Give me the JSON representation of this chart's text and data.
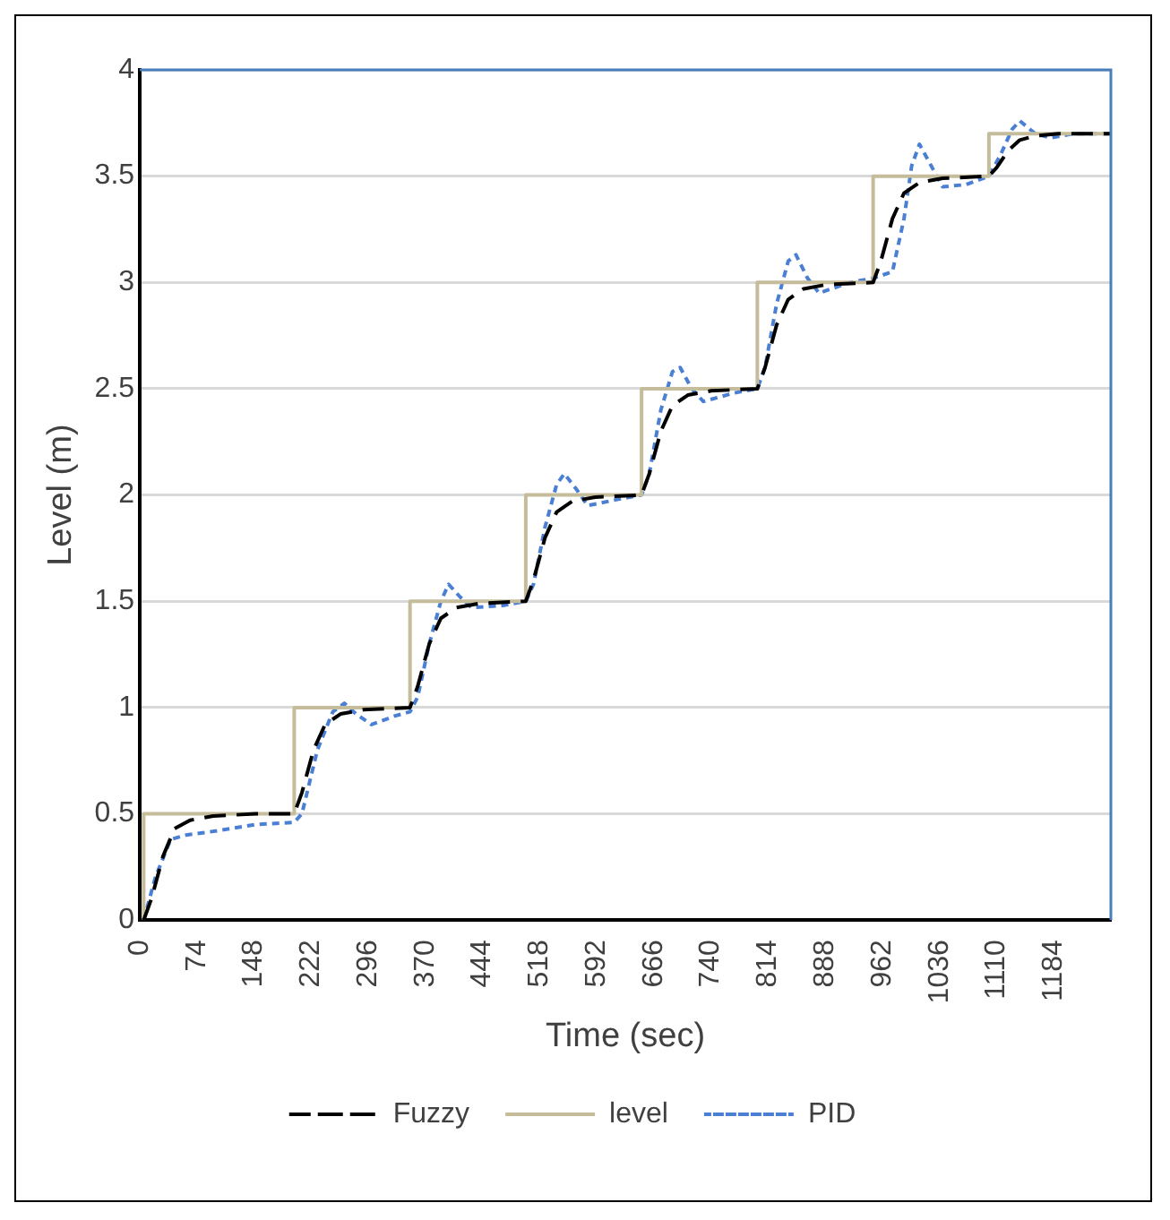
{
  "chart_data": {
    "type": "line",
    "xlabel": "Time (sec)",
    "ylabel": "Level (m)",
    "xlim": [
      0,
      1258
    ],
    "xticks": [
      0,
      74,
      148,
      222,
      296,
      370,
      444,
      518,
      592,
      666,
      740,
      814,
      888,
      962,
      1036,
      1110,
      1184
    ],
    "ylim": [
      0,
      4
    ],
    "yticks": [
      0,
      0.5,
      1,
      1.5,
      2,
      2.5,
      3,
      3.5,
      4
    ],
    "grid": "y",
    "legend": "bottom",
    "marker": "none",
    "series": [
      {
        "name": "Fuzzy",
        "color": "#000000",
        "line_style": "dashed",
        "x": [
          5,
          15,
          30,
          45,
          65,
          95,
          150,
          200,
          210,
          225,
          240,
          260,
          290,
          350,
          360,
          375,
          390,
          410,
          440,
          500,
          510,
          525,
          540,
          560,
          590,
          650,
          660,
          675,
          690,
          710,
          740,
          800,
          810,
          825,
          840,
          860,
          890,
          950,
          960,
          975,
          990,
          1010,
          1040,
          1100,
          1110,
          1125,
          1140,
          1160,
          1190,
          1258
        ],
        "values": [
          0,
          0.1,
          0.3,
          0.43,
          0.47,
          0.49,
          0.5,
          0.5,
          0.6,
          0.8,
          0.92,
          0.97,
          0.99,
          1,
          1.1,
          1.3,
          1.42,
          1.47,
          1.49,
          1.5,
          1.6,
          1.8,
          1.92,
          1.97,
          1.99,
          2,
          2.1,
          2.3,
          2.42,
          2.47,
          2.49,
          2.5,
          2.6,
          2.8,
          2.92,
          2.97,
          2.99,
          3,
          3.1,
          3.3,
          3.42,
          3.47,
          3.49,
          3.5,
          3.54,
          3.62,
          3.67,
          3.69,
          3.7,
          3.7
        ]
      },
      {
        "name": "level",
        "color": "#c4bc9a",
        "line_style": "solid",
        "x": [
          5,
          5,
          200,
          200,
          350,
          350,
          500,
          500,
          650,
          650,
          800,
          800,
          950,
          950,
          1100,
          1100,
          1258
        ],
        "values": [
          0,
          0.5,
          0.5,
          1,
          1,
          1.5,
          1.5,
          2,
          2,
          2.5,
          2.5,
          3,
          3,
          3.5,
          3.5,
          3.7,
          3.7
        ]
      },
      {
        "name": "PID",
        "color": "#4a7fd4",
        "line_style": "dotted",
        "x": [
          5,
          20,
          40,
          60,
          100,
          150,
          200,
          210,
          230,
          250,
          265,
          280,
          300,
          330,
          350,
          360,
          375,
          390,
          400,
          415,
          430,
          470,
          500,
          510,
          525,
          540,
          550,
          565,
          580,
          620,
          650,
          660,
          675,
          690,
          700,
          715,
          730,
          770,
          800,
          810,
          825,
          840,
          850,
          865,
          880,
          920,
          950,
          975,
          990,
          1000,
          1010,
          1025,
          1040,
          1070,
          1100,
          1115,
          1130,
          1140,
          1160,
          1180,
          1210,
          1258
        ],
        "values": [
          0,
          0.2,
          0.38,
          0.4,
          0.42,
          0.45,
          0.46,
          0.5,
          0.8,
          0.98,
          1.02,
          0.97,
          0.92,
          0.96,
          0.98,
          1.05,
          1.3,
          1.5,
          1.58,
          1.52,
          1.47,
          1.48,
          1.5,
          1.58,
          1.85,
          2.05,
          2.1,
          2.03,
          1.95,
          1.98,
          2,
          2.1,
          2.4,
          2.58,
          2.6,
          2.5,
          2.44,
          2.48,
          2.5,
          2.6,
          2.9,
          3.1,
          3.13,
          3.02,
          2.95,
          3,
          3.02,
          3.05,
          3.3,
          3.55,
          3.65,
          3.55,
          3.45,
          3.46,
          3.5,
          3.6,
          3.72,
          3.76,
          3.7,
          3.68,
          3.7,
          3.7
        ]
      }
    ]
  }
}
